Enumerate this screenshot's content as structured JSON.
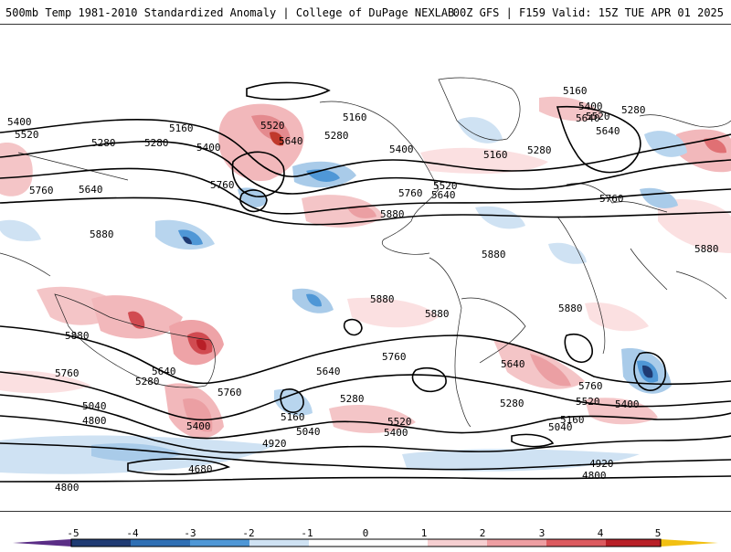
{
  "header": {
    "title_left": "500mb Temp 1981-2010 Standardized Anomaly | College of DuPage NEXLAB",
    "title_right": "00Z GFS | F159 Valid: 15Z TUE APR 01 2025"
  },
  "contour_labels": [
    {
      "text": "5400",
      "name": "contour-5400-a"
    },
    {
      "text": "5520",
      "name": "contour-5520-a"
    },
    {
      "text": "5160",
      "name": "contour-5160-a"
    },
    {
      "text": "5280",
      "name": "contour-5280-a"
    },
    {
      "text": "5400",
      "name": "contour-5400-b"
    },
    {
      "text": "5640",
      "name": "contour-5640-a"
    },
    {
      "text": "5760",
      "name": "contour-5760-a"
    },
    {
      "text": "5640",
      "name": "contour-5640-b"
    },
    {
      "text": "5760",
      "name": "contour-5760-b"
    },
    {
      "text": "5880",
      "name": "contour-5880-a"
    },
    {
      "text": "5520",
      "name": "contour-5520-b"
    },
    {
      "text": "5640",
      "name": "contour-5640-c"
    },
    {
      "text": "5160",
      "name": "contour-5160-b"
    },
    {
      "text": "5280",
      "name": "contour-5280-b"
    },
    {
      "text": "5400",
      "name": "contour-5400-c"
    },
    {
      "text": "5760",
      "name": "contour-5760-c"
    },
    {
      "text": "5520",
      "name": "contour-5520-c"
    },
    {
      "text": "5640",
      "name": "contour-5640-d"
    },
    {
      "text": "5880",
      "name": "contour-5880-b"
    },
    {
      "text": "5160",
      "name": "contour-5160-c"
    },
    {
      "text": "5280",
      "name": "contour-5280-c"
    },
    {
      "text": "5400",
      "name": "contour-5400-d"
    },
    {
      "text": "5520",
      "name": "contour-5520-d"
    },
    {
      "text": "5160",
      "name": "contour-5160-d"
    },
    {
      "text": "5280",
      "name": "contour-5280-d"
    },
    {
      "text": "5640",
      "name": "contour-5640-e"
    },
    {
      "text": "5280",
      "name": "contour-5280-e"
    },
    {
      "text": "5760",
      "name": "contour-5760-d"
    },
    {
      "text": "5880",
      "name": "contour-5880-c"
    },
    {
      "text": "5880",
      "name": "contour-5880-d"
    },
    {
      "text": "5880",
      "name": "contour-5880-e"
    },
    {
      "text": "5880",
      "name": "contour-5880-f"
    },
    {
      "text": "5880",
      "name": "contour-5880-g"
    },
    {
      "text": "5760",
      "name": "contour-5760-e"
    },
    {
      "text": "5760",
      "name": "contour-5760-f"
    },
    {
      "text": "5640",
      "name": "contour-5640-f"
    },
    {
      "text": "5280",
      "name": "contour-5280-f"
    },
    {
      "text": "5760",
      "name": "contour-5760-g"
    },
    {
      "text": "5640",
      "name": "contour-5640-g"
    },
    {
      "text": "5280",
      "name": "contour-5280-g"
    },
    {
      "text": "5160",
      "name": "contour-5160-e"
    },
    {
      "text": "5040",
      "name": "contour-5040-a"
    },
    {
      "text": "4800",
      "name": "contour-4800-a"
    },
    {
      "text": "5400",
      "name": "contour-5400-e"
    },
    {
      "text": "5040",
      "name": "contour-5040-b"
    },
    {
      "text": "4920",
      "name": "contour-4920-a"
    },
    {
      "text": "5520",
      "name": "contour-5520-e"
    },
    {
      "text": "5400",
      "name": "contour-5400-f"
    },
    {
      "text": "4680",
      "name": "contour-4680-a"
    },
    {
      "text": "4800",
      "name": "contour-4800-b"
    },
    {
      "text": "5640",
      "name": "contour-5640-h"
    },
    {
      "text": "5760",
      "name": "contour-5760-h"
    },
    {
      "text": "5280",
      "name": "contour-5280-h"
    },
    {
      "text": "5520",
      "name": "contour-5520-f"
    },
    {
      "text": "5400",
      "name": "contour-5400-g"
    },
    {
      "text": "5160",
      "name": "contour-5160-f"
    },
    {
      "text": "5040",
      "name": "contour-5040-c"
    },
    {
      "text": "4920",
      "name": "contour-4920-b"
    },
    {
      "text": "4800",
      "name": "contour-4800-c"
    }
  ],
  "colorbar": {
    "labels": [
      "-5",
      "-4",
      "-3",
      "-2",
      "-1",
      "0",
      "1",
      "2",
      "3",
      "4",
      "5"
    ],
    "colors": [
      "#5a2d86",
      "#1f3b73",
      "#2f6fb4",
      "#4f97d6",
      "#8fbfe6",
      "#cfe2f3",
      "#ffffff",
      "#ffffff",
      "#f6cfd1",
      "#ee9ea2",
      "#dc5a5f",
      "#b81f27",
      "#7d0a10",
      "#f2c012"
    ]
  }
}
